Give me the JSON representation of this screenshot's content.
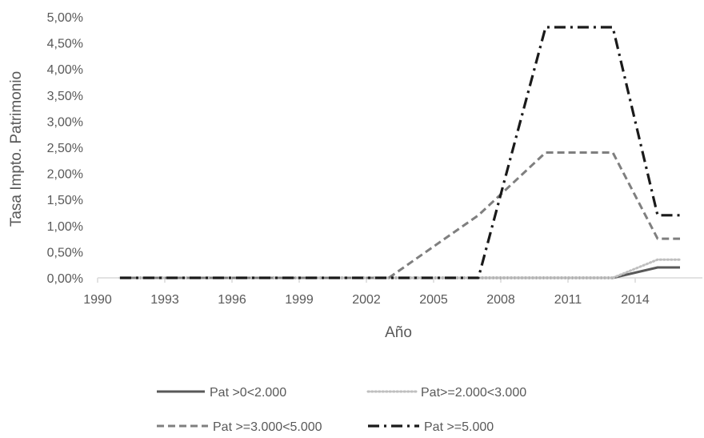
{
  "chart_data": {
    "type": "line",
    "title": "",
    "xlabel": "Año",
    "ylabel": "Tasa Impto. Patrimonio",
    "xlim": [
      1990,
      2017
    ],
    "ylim": [
      0,
      0.05
    ],
    "x_ticks": [
      1990,
      1993,
      1996,
      1999,
      2002,
      2005,
      2008,
      2011,
      2014
    ],
    "x_tick_labels": [
      "1990",
      "1993",
      "1996",
      "1999",
      "2002",
      "2005",
      "2008",
      "2011",
      "2014"
    ],
    "y_ticks": [
      0,
      0.005,
      0.01,
      0.015,
      0.02,
      0.025,
      0.03,
      0.035,
      0.04,
      0.045,
      0.05
    ],
    "y_tick_labels": [
      "0,00%",
      "0,50%",
      "1,00%",
      "1,50%",
      "2,00%",
      "2,50%",
      "3,00%",
      "3,50%",
      "4,00%",
      "4,50%",
      "5,00%"
    ],
    "grid": false,
    "legend_position": "bottom",
    "series": [
      {
        "name": "Pat >0<2.000",
        "style": "solid",
        "color": "#595959",
        "x": [
          1991,
          2013,
          2015,
          2016
        ],
        "y": [
          0,
          0,
          0.002,
          0.002
        ]
      },
      {
        "name": "Pat>=2.000<3.000",
        "style": "dotted",
        "color": "#BFBFBF",
        "x": [
          1991,
          2013,
          2015,
          2016
        ],
        "y": [
          0,
          0,
          0.0035,
          0.0035
        ]
      },
      {
        "name": "Pat >=3.000<5.000",
        "style": "dashed",
        "color": "#7F7F7F",
        "x": [
          1991,
          2003,
          2007,
          2010,
          2013,
          2015,
          2016
        ],
        "y": [
          0,
          0,
          0.012,
          0.024,
          0.024,
          0.0075,
          0.0075
        ]
      },
      {
        "name": "Pat >=5.000",
        "style": "dashdot",
        "color": "#1A1A1A",
        "x": [
          1991,
          2007,
          2010,
          2013,
          2015,
          2016
        ],
        "y": [
          0,
          0,
          0.048,
          0.048,
          0.012,
          0.012
        ]
      }
    ]
  }
}
